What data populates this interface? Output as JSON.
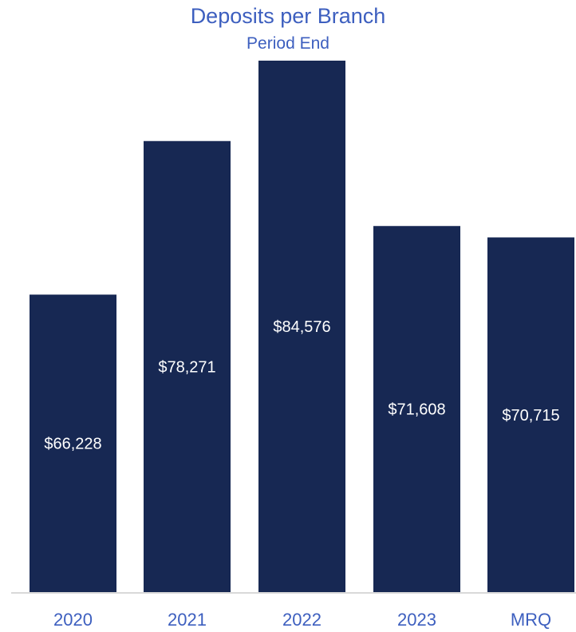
{
  "chart_data": {
    "type": "bar",
    "title": "Deposits per Branch",
    "subtitle": "Period End",
    "categories": [
      "2020",
      "2021",
      "2022",
      "2023",
      "MRQ"
    ],
    "values": [
      66228,
      78271,
      84576,
      71608,
      70715
    ],
    "value_labels": [
      "$66,228",
      "$78,271",
      "$84,576",
      "$71,608",
      "$70,715"
    ],
    "ylim": [
      42900,
      84576
    ],
    "grid": false,
    "legend": "none",
    "colors": {
      "bar": "#172853",
      "value_label": "#ffffff",
      "title": "#3d5fbf",
      "tick_label": "#3d5fbf",
      "axis_line": "#d9d9d9"
    }
  }
}
